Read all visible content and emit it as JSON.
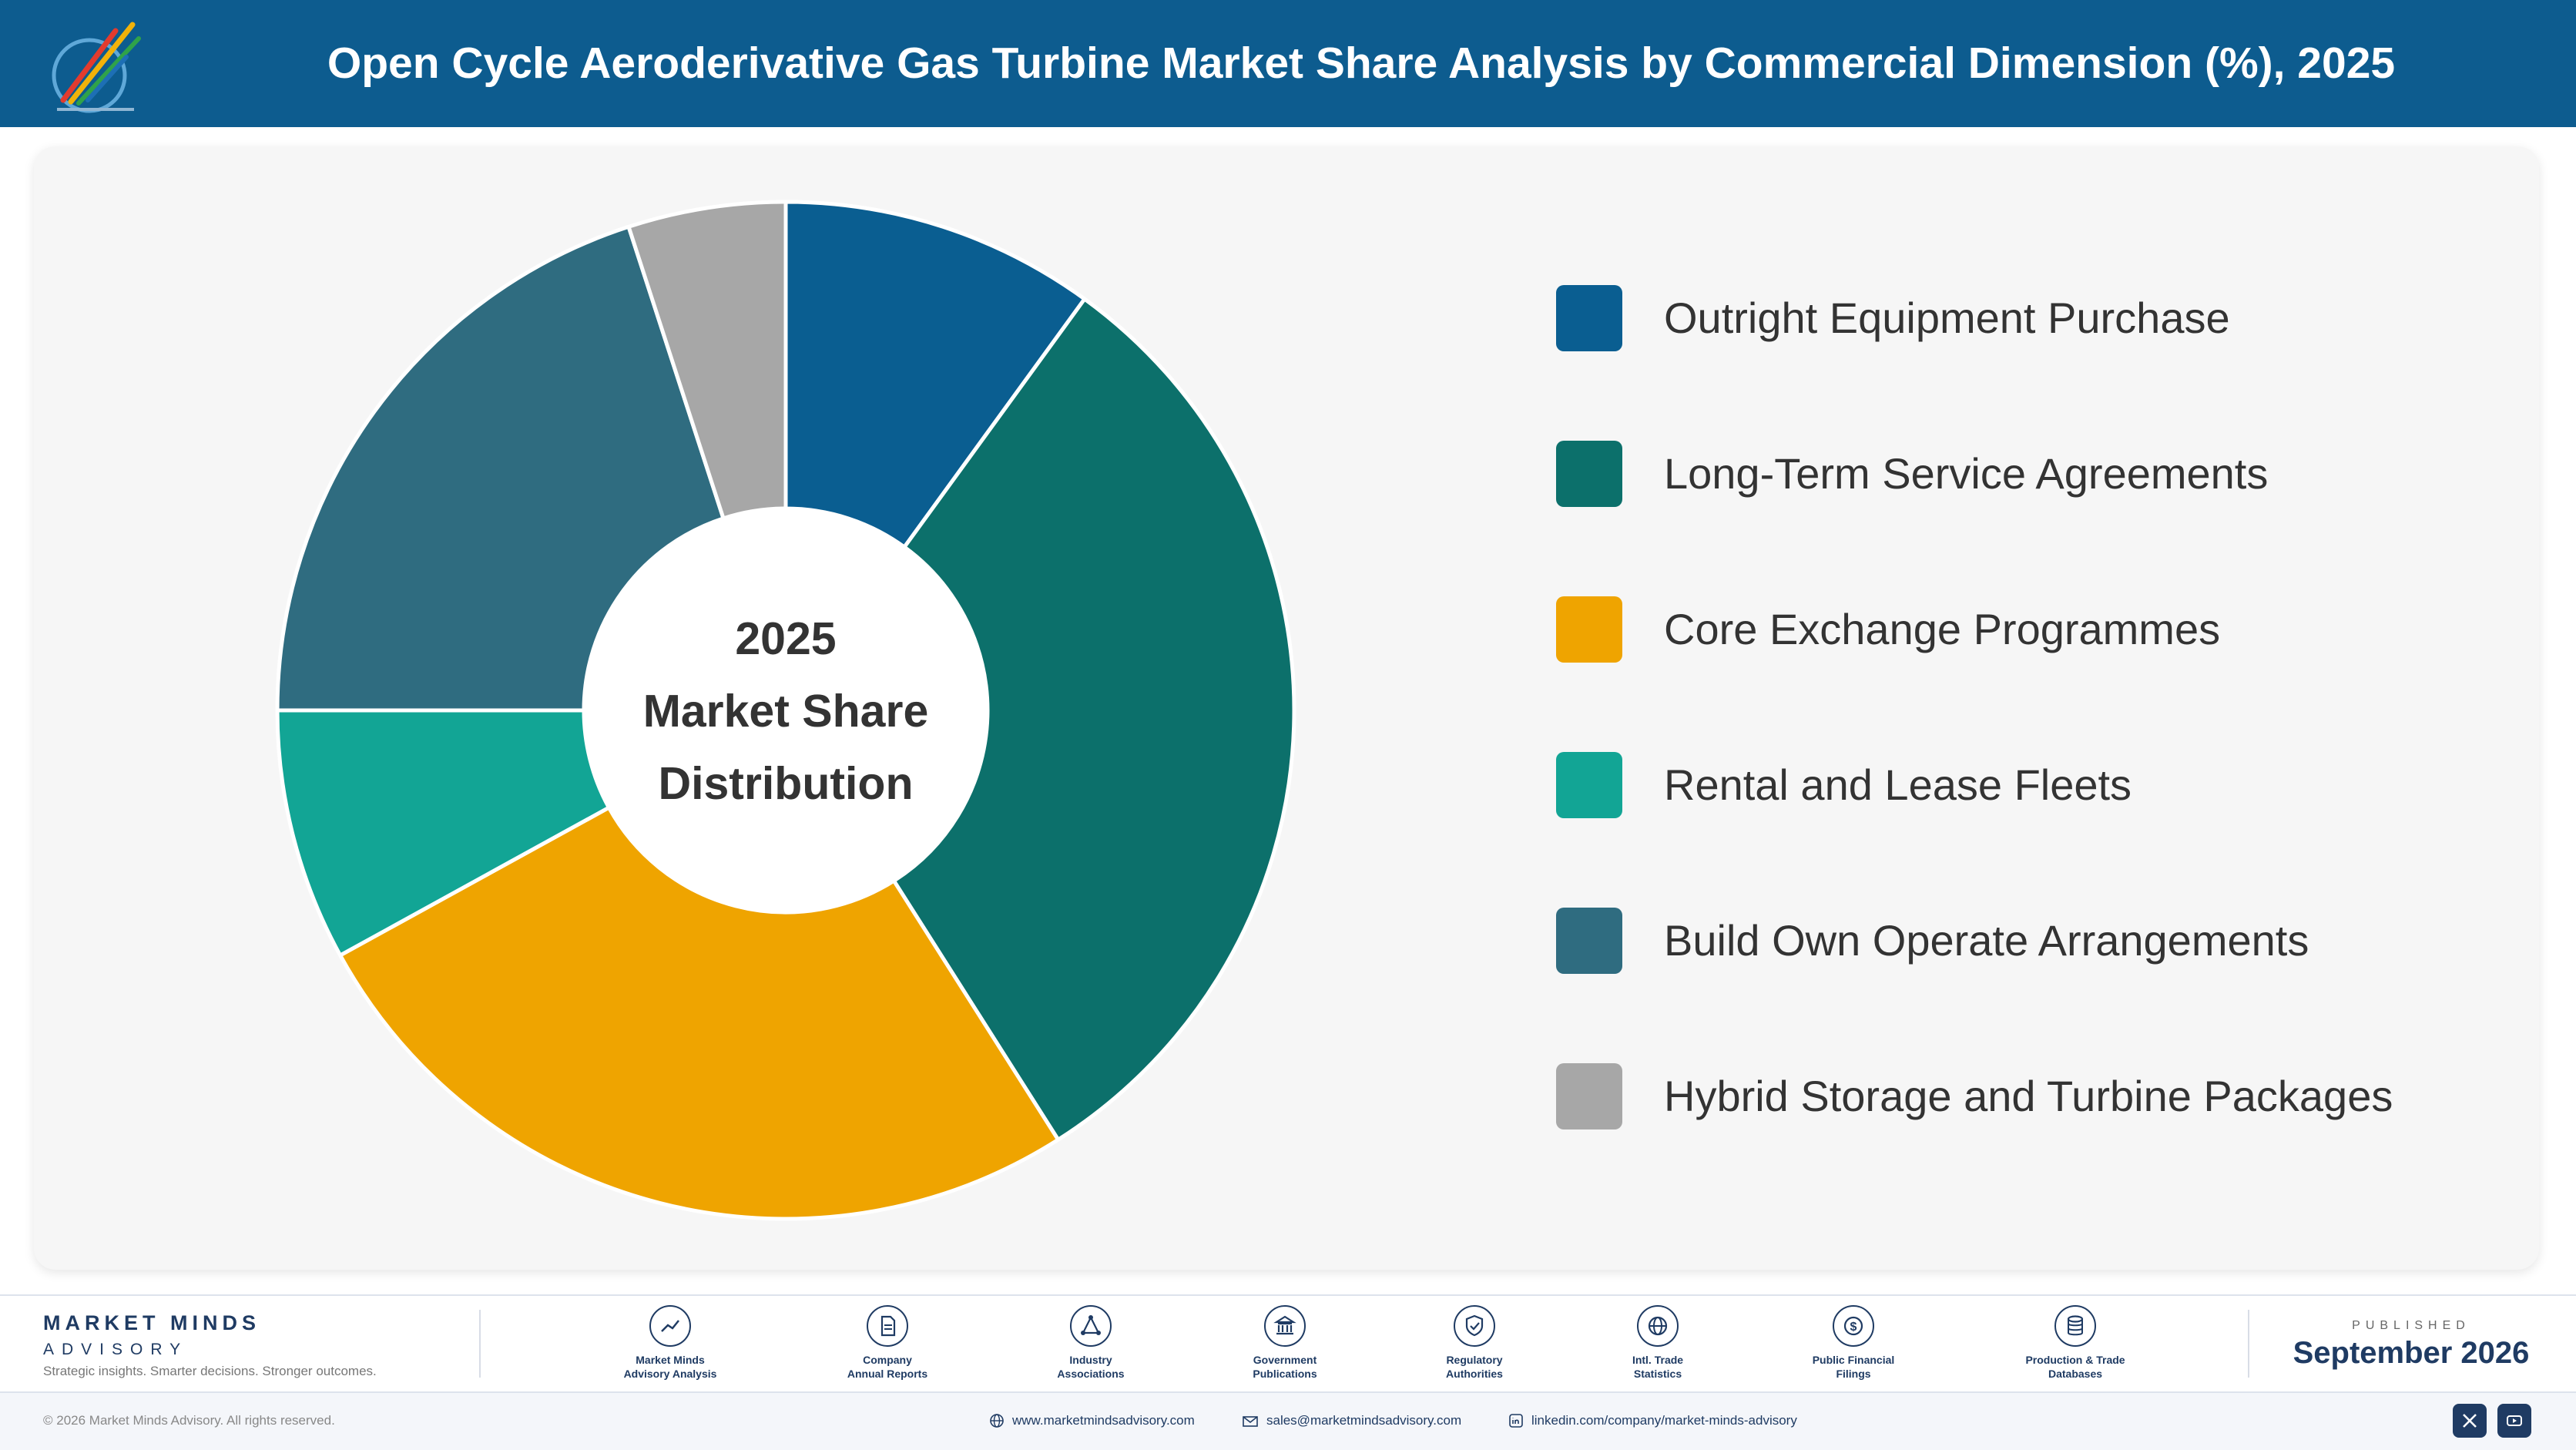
{
  "header": {
    "title": "Open Cycle Aeroderivative Gas Turbine Market Share Analysis by Commercial Dimension (%), 2025"
  },
  "colors": {
    "header_bg": "#0d5c8f",
    "panel_bg": "#f6f6f6",
    "brand_navy": "#1f3b63"
  },
  "chart_data": {
    "type": "pie",
    "variant": "donut",
    "title": "Open Cycle Aeroderivative Gas Turbine Market Share Analysis by Commercial Dimension (%), 2025",
    "center_label": [
      "2025",
      "Market Share",
      "Distribution"
    ],
    "legend_position": "right",
    "categories": [
      "Outright Equipment Purchase",
      "Long-Term Service Agreements",
      "Core Exchange Programmes",
      "Rental and Lease Fleets",
      "Build Own Operate Arrangements",
      "Hybrid Storage and Turbine Packages"
    ],
    "values": [
      10,
      31,
      26,
      8,
      20,
      5
    ],
    "colors": [
      "#0a5e91",
      "#0c706b",
      "#efa400",
      "#12a595",
      "#2f6c80",
      "#a7a7a7"
    ]
  },
  "footer": {
    "brand_name": "MARKET MINDS",
    "brand_sub": "ADVISORY",
    "tagline": "Strategic insights. Smarter decisions. Stronger outcomes.",
    "sources": [
      {
        "label": "Market Minds\nAdvisory Analysis",
        "icon": "trend-line-icon"
      },
      {
        "label": "Company\nAnnual Reports",
        "icon": "document-icon"
      },
      {
        "label": "Industry\nAssociations",
        "icon": "network-icon"
      },
      {
        "label": "Government\nPublications",
        "icon": "government-building-icon"
      },
      {
        "label": "Regulatory\nAuthorities",
        "icon": "shield-check-icon"
      },
      {
        "label": "Intl. Trade\nStatistics",
        "icon": "globe-icon"
      },
      {
        "label": "Public Financial\nFilings",
        "icon": "dollar-coin-icon"
      },
      {
        "label": "Production & Trade\nDatabases",
        "icon": "database-icon"
      }
    ],
    "published_label": "PUBLISHED",
    "published_date": "September 2026",
    "copyright": "© 2026 Market Minds Advisory. All rights reserved.",
    "website": "www.marketmindsadvisory.com",
    "email": "sales@marketmindsadvisory.com",
    "linkedin": "linkedin.com/company/market-minds-advisory",
    "social": [
      "x-icon",
      "youtube-icon"
    ]
  }
}
